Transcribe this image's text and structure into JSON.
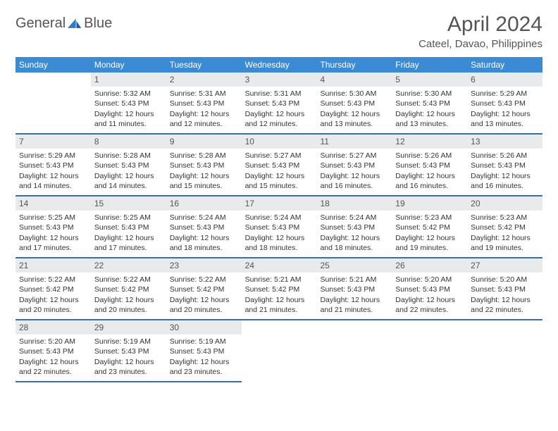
{
  "brand": {
    "word1": "General",
    "word2": "Blue"
  },
  "header": {
    "month_title": "April 2024",
    "location": "Cateel, Davao, Philippines"
  },
  "colors": {
    "header_bg": "#3b8bd4",
    "header_text": "#ffffff",
    "week_rule": "#3b6fa5",
    "daynum_bg": "#e9eaeb",
    "text": "#333333",
    "title_text": "#555555",
    "brand_gray": "#555555",
    "brand_blue": "#2d7dc7"
  },
  "day_labels": [
    "Sunday",
    "Monday",
    "Tuesday",
    "Wednesday",
    "Thursday",
    "Friday",
    "Saturday"
  ],
  "weeks": [
    [
      {
        "num": "",
        "sunrise": "",
        "sunset": "",
        "daylight": ""
      },
      {
        "num": "1",
        "sunrise": "Sunrise: 5:32 AM",
        "sunset": "Sunset: 5:43 PM",
        "daylight": "Daylight: 12 hours and 11 minutes."
      },
      {
        "num": "2",
        "sunrise": "Sunrise: 5:31 AM",
        "sunset": "Sunset: 5:43 PM",
        "daylight": "Daylight: 12 hours and 12 minutes."
      },
      {
        "num": "3",
        "sunrise": "Sunrise: 5:31 AM",
        "sunset": "Sunset: 5:43 PM",
        "daylight": "Daylight: 12 hours and 12 minutes."
      },
      {
        "num": "4",
        "sunrise": "Sunrise: 5:30 AM",
        "sunset": "Sunset: 5:43 PM",
        "daylight": "Daylight: 12 hours and 13 minutes."
      },
      {
        "num": "5",
        "sunrise": "Sunrise: 5:30 AM",
        "sunset": "Sunset: 5:43 PM",
        "daylight": "Daylight: 12 hours and 13 minutes."
      },
      {
        "num": "6",
        "sunrise": "Sunrise: 5:29 AM",
        "sunset": "Sunset: 5:43 PM",
        "daylight": "Daylight: 12 hours and 13 minutes."
      }
    ],
    [
      {
        "num": "7",
        "sunrise": "Sunrise: 5:29 AM",
        "sunset": "Sunset: 5:43 PM",
        "daylight": "Daylight: 12 hours and 14 minutes."
      },
      {
        "num": "8",
        "sunrise": "Sunrise: 5:28 AM",
        "sunset": "Sunset: 5:43 PM",
        "daylight": "Daylight: 12 hours and 14 minutes."
      },
      {
        "num": "9",
        "sunrise": "Sunrise: 5:28 AM",
        "sunset": "Sunset: 5:43 PM",
        "daylight": "Daylight: 12 hours and 15 minutes."
      },
      {
        "num": "10",
        "sunrise": "Sunrise: 5:27 AM",
        "sunset": "Sunset: 5:43 PM",
        "daylight": "Daylight: 12 hours and 15 minutes."
      },
      {
        "num": "11",
        "sunrise": "Sunrise: 5:27 AM",
        "sunset": "Sunset: 5:43 PM",
        "daylight": "Daylight: 12 hours and 16 minutes."
      },
      {
        "num": "12",
        "sunrise": "Sunrise: 5:26 AM",
        "sunset": "Sunset: 5:43 PM",
        "daylight": "Daylight: 12 hours and 16 minutes."
      },
      {
        "num": "13",
        "sunrise": "Sunrise: 5:26 AM",
        "sunset": "Sunset: 5:43 PM",
        "daylight": "Daylight: 12 hours and 16 minutes."
      }
    ],
    [
      {
        "num": "14",
        "sunrise": "Sunrise: 5:25 AM",
        "sunset": "Sunset: 5:43 PM",
        "daylight": "Daylight: 12 hours and 17 minutes."
      },
      {
        "num": "15",
        "sunrise": "Sunrise: 5:25 AM",
        "sunset": "Sunset: 5:43 PM",
        "daylight": "Daylight: 12 hours and 17 minutes."
      },
      {
        "num": "16",
        "sunrise": "Sunrise: 5:24 AM",
        "sunset": "Sunset: 5:43 PM",
        "daylight": "Daylight: 12 hours and 18 minutes."
      },
      {
        "num": "17",
        "sunrise": "Sunrise: 5:24 AM",
        "sunset": "Sunset: 5:43 PM",
        "daylight": "Daylight: 12 hours and 18 minutes."
      },
      {
        "num": "18",
        "sunrise": "Sunrise: 5:24 AM",
        "sunset": "Sunset: 5:43 PM",
        "daylight": "Daylight: 12 hours and 18 minutes."
      },
      {
        "num": "19",
        "sunrise": "Sunrise: 5:23 AM",
        "sunset": "Sunset: 5:42 PM",
        "daylight": "Daylight: 12 hours and 19 minutes."
      },
      {
        "num": "20",
        "sunrise": "Sunrise: 5:23 AM",
        "sunset": "Sunset: 5:42 PM",
        "daylight": "Daylight: 12 hours and 19 minutes."
      }
    ],
    [
      {
        "num": "21",
        "sunrise": "Sunrise: 5:22 AM",
        "sunset": "Sunset: 5:42 PM",
        "daylight": "Daylight: 12 hours and 20 minutes."
      },
      {
        "num": "22",
        "sunrise": "Sunrise: 5:22 AM",
        "sunset": "Sunset: 5:42 PM",
        "daylight": "Daylight: 12 hours and 20 minutes."
      },
      {
        "num": "23",
        "sunrise": "Sunrise: 5:22 AM",
        "sunset": "Sunset: 5:42 PM",
        "daylight": "Daylight: 12 hours and 20 minutes."
      },
      {
        "num": "24",
        "sunrise": "Sunrise: 5:21 AM",
        "sunset": "Sunset: 5:42 PM",
        "daylight": "Daylight: 12 hours and 21 minutes."
      },
      {
        "num": "25",
        "sunrise": "Sunrise: 5:21 AM",
        "sunset": "Sunset: 5:43 PM",
        "daylight": "Daylight: 12 hours and 21 minutes."
      },
      {
        "num": "26",
        "sunrise": "Sunrise: 5:20 AM",
        "sunset": "Sunset: 5:43 PM",
        "daylight": "Daylight: 12 hours and 22 minutes."
      },
      {
        "num": "27",
        "sunrise": "Sunrise: 5:20 AM",
        "sunset": "Sunset: 5:43 PM",
        "daylight": "Daylight: 12 hours and 22 minutes."
      }
    ],
    [
      {
        "num": "28",
        "sunrise": "Sunrise: 5:20 AM",
        "sunset": "Sunset: 5:43 PM",
        "daylight": "Daylight: 12 hours and 22 minutes."
      },
      {
        "num": "29",
        "sunrise": "Sunrise: 5:19 AM",
        "sunset": "Sunset: 5:43 PM",
        "daylight": "Daylight: 12 hours and 23 minutes."
      },
      {
        "num": "30",
        "sunrise": "Sunrise: 5:19 AM",
        "sunset": "Sunset: 5:43 PM",
        "daylight": "Daylight: 12 hours and 23 minutes."
      },
      {
        "num": "",
        "sunrise": "",
        "sunset": "",
        "daylight": ""
      },
      {
        "num": "",
        "sunrise": "",
        "sunset": "",
        "daylight": ""
      },
      {
        "num": "",
        "sunrise": "",
        "sunset": "",
        "daylight": ""
      },
      {
        "num": "",
        "sunrise": "",
        "sunset": "",
        "daylight": ""
      }
    ]
  ]
}
